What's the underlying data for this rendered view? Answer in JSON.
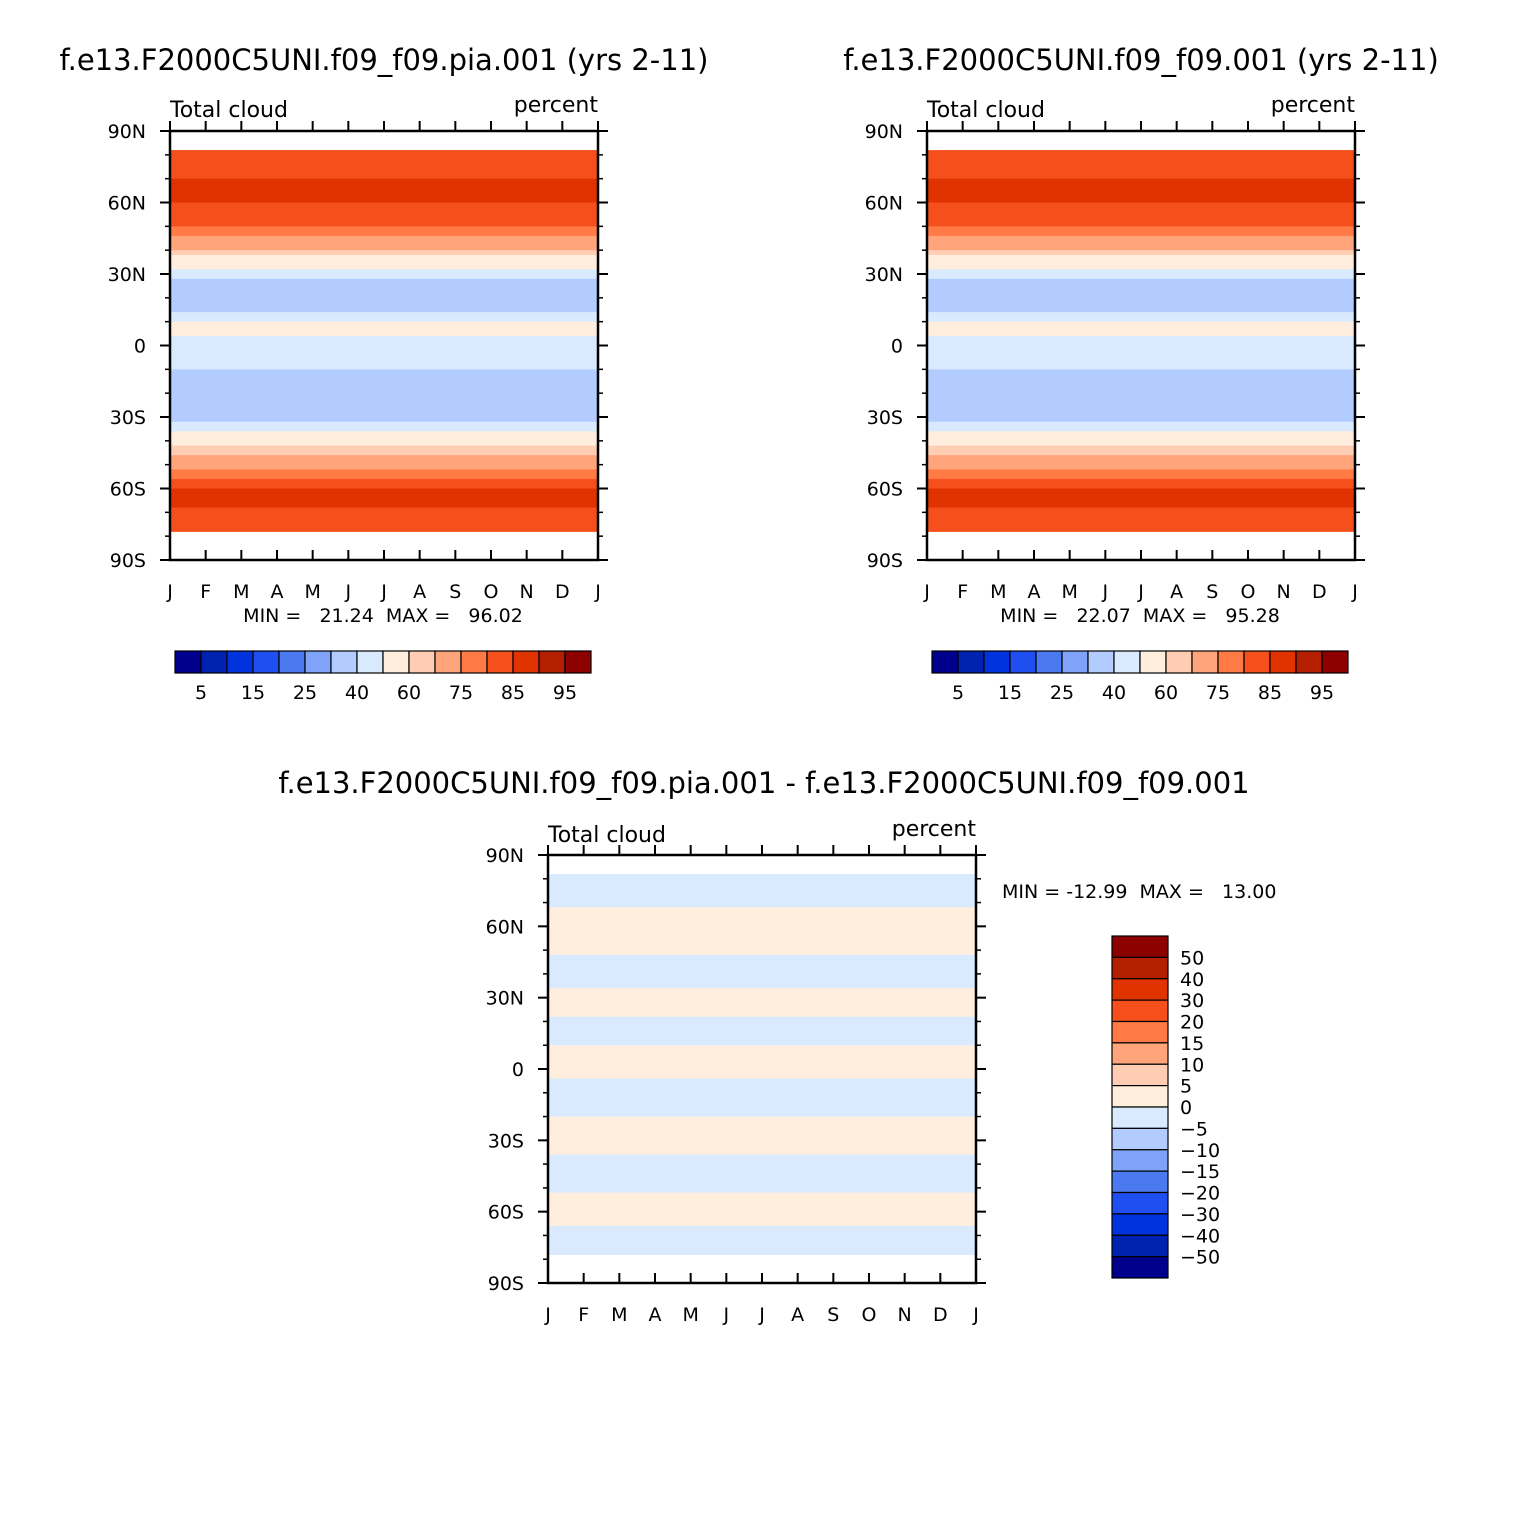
{
  "chart_data": [
    {
      "type": "heatmap",
      "title": "f.e13.F2000C5UNI.f09_f09.pia.001 (yrs 2-11)",
      "variable_label": "Total cloud",
      "units_label": "percent",
      "x_tick_labels": [
        "J",
        "F",
        "M",
        "A",
        "M",
        "J",
        "J",
        "A",
        "S",
        "O",
        "N",
        "D",
        "J"
      ],
      "y_tick_labels": [
        "90N",
        "60N",
        "30N",
        "0",
        "30S",
        "60S",
        "90S"
      ],
      "y_range": [
        -90,
        90
      ],
      "min_max_text": "MIN =   21.24  MAX =   96.02",
      "min": 21.24,
      "max": 96.02,
      "colorbar_labels": [
        "5",
        "15",
        "25",
        "40",
        "60",
        "75",
        "85",
        "95"
      ],
      "colorbar_colors": [
        "#00008c",
        "#0022b0",
        "#0033dd",
        "#1f4ff0",
        "#4b7af0",
        "#7ea3f8",
        "#b3ccff",
        "#d9eaff",
        "#ffeedd",
        "#ffcdb3",
        "#ffa47b",
        "#ff7a45",
        "#f5501c",
        "#e03300",
        "#b31f00",
        "#8c0000"
      ],
      "zonal_profile": [
        {
          "lat": 81,
          "value": 80
        },
        {
          "lat": 70,
          "value": 85
        },
        {
          "lat": 60,
          "value": 85
        },
        {
          "lat": 50,
          "value": 80
        },
        {
          "lat": 40,
          "value": 65
        },
        {
          "lat": 33,
          "value": 50
        },
        {
          "lat": 28,
          "value": 40
        },
        {
          "lat": 20,
          "value": 30
        },
        {
          "lat": 13,
          "value": 40
        },
        {
          "lat": 7,
          "value": 55
        },
        {
          "lat": 0,
          "value": 45
        },
        {
          "lat": -10,
          "value": 40
        },
        {
          "lat": -22,
          "value": 30
        },
        {
          "lat": -32,
          "value": 40
        },
        {
          "lat": -42,
          "value": 60
        },
        {
          "lat": -52,
          "value": 75
        },
        {
          "lat": -60,
          "value": 85
        },
        {
          "lat": -68,
          "value": 85
        },
        {
          "lat": -76,
          "value": 80
        }
      ]
    },
    {
      "type": "heatmap",
      "title": "f.e13.F2000C5UNI.f09_f09.001 (yrs 2-11)",
      "variable_label": "Total cloud",
      "units_label": "percent",
      "x_tick_labels": [
        "J",
        "F",
        "M",
        "A",
        "M",
        "J",
        "J",
        "A",
        "S",
        "O",
        "N",
        "D",
        "J"
      ],
      "y_tick_labels": [
        "90N",
        "60N",
        "30N",
        "0",
        "30S",
        "60S",
        "90S"
      ],
      "y_range": [
        -90,
        90
      ],
      "min_max_text": "MIN =   22.07  MAX =   95.28",
      "min": 22.07,
      "max": 95.28,
      "colorbar_labels": [
        "5",
        "15",
        "25",
        "40",
        "60",
        "75",
        "85",
        "95"
      ],
      "colorbar_colors": [
        "#00008c",
        "#0022b0",
        "#0033dd",
        "#1f4ff0",
        "#4b7af0",
        "#7ea3f8",
        "#b3ccff",
        "#d9eaff",
        "#ffeedd",
        "#ffcdb3",
        "#ffa47b",
        "#ff7a45",
        "#f5501c",
        "#e03300",
        "#b31f00",
        "#8c0000"
      ],
      "zonal_profile": [
        {
          "lat": 81,
          "value": 80
        },
        {
          "lat": 70,
          "value": 85
        },
        {
          "lat": 60,
          "value": 85
        },
        {
          "lat": 50,
          "value": 80
        },
        {
          "lat": 40,
          "value": 65
        },
        {
          "lat": 33,
          "value": 50
        },
        {
          "lat": 28,
          "value": 40
        },
        {
          "lat": 20,
          "value": 30
        },
        {
          "lat": 13,
          "value": 40
        },
        {
          "lat": 7,
          "value": 55
        },
        {
          "lat": 0,
          "value": 45
        },
        {
          "lat": -10,
          "value": 40
        },
        {
          "lat": -22,
          "value": 30
        },
        {
          "lat": -32,
          "value": 40
        },
        {
          "lat": -42,
          "value": 60
        },
        {
          "lat": -52,
          "value": 75
        },
        {
          "lat": -60,
          "value": 85
        },
        {
          "lat": -68,
          "value": 85
        },
        {
          "lat": -76,
          "value": 80
        }
      ]
    },
    {
      "type": "heatmap",
      "title": "f.e13.F2000C5UNI.f09_f09.pia.001 - f.e13.F2000C5UNI.f09_f09.001",
      "variable_label": "Total cloud",
      "units_label": "percent",
      "x_tick_labels": [
        "J",
        "F",
        "M",
        "A",
        "M",
        "J",
        "J",
        "A",
        "S",
        "O",
        "N",
        "D",
        "J"
      ],
      "y_tick_labels": [
        "90N",
        "60N",
        "30N",
        "0",
        "30S",
        "60S",
        "90S"
      ],
      "y_range": [
        -90,
        90
      ],
      "min_max_text": "MIN = -12.99  MAX =   13.00",
      "min": -12.99,
      "max": 13.0,
      "colorbar_labels": [
        "50",
        "40",
        "30",
        "20",
        "15",
        "10",
        "5",
        "0",
        "-5",
        "-10",
        "-15",
        "-20",
        "-30",
        "-40",
        "-50"
      ],
      "colorbar_colors": [
        "#8c0000",
        "#b31f00",
        "#e03300",
        "#f5501c",
        "#ff7a45",
        "#ffa47b",
        "#ffcdb3",
        "#ffeedd",
        "#d9eaff",
        "#b3ccff",
        "#7ea3f8",
        "#4b7af0",
        "#1f4ff0",
        "#0033dd",
        "#0022b0",
        "#00008c"
      ],
      "zonal_profile": [
        {
          "lat": 80,
          "value": -2
        },
        {
          "lat": 55,
          "value": 2
        },
        {
          "lat": 40,
          "value": -2
        },
        {
          "lat": 28,
          "value": 2
        },
        {
          "lat": 15,
          "value": -2
        },
        {
          "lat": 3,
          "value": 2
        },
        {
          "lat": -12,
          "value": -2
        },
        {
          "lat": -28,
          "value": 2
        },
        {
          "lat": -45,
          "value": -2
        },
        {
          "lat": -58,
          "value": 2
        },
        {
          "lat": -72,
          "value": -2
        }
      ]
    }
  ]
}
